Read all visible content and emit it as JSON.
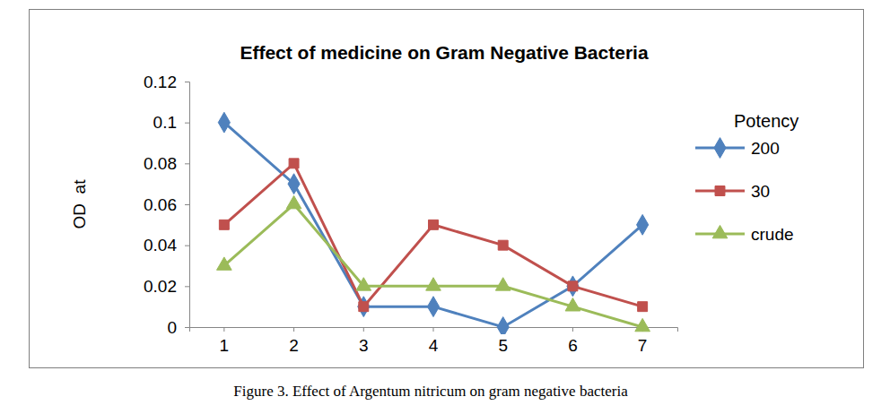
{
  "chart_data": {
    "type": "line",
    "title": "Effect of medicine on Gram Negative Bacteria",
    "y_label": "OD  at",
    "caption": "Figure 3. Effect of Argentum nitricum on gram negative bacteria",
    "legend_title": "Potency",
    "legend": "right",
    "grid": false,
    "categories": [
      "1",
      "2",
      "3",
      "4",
      "5",
      "6",
      "7"
    ],
    "series": [
      {
        "name": "200",
        "color": "#4f81bd",
        "marker": "diamond",
        "values": [
          0.1,
          0.07,
          0.01,
          0.01,
          0,
          0.02,
          0.05
        ]
      },
      {
        "name": "30",
        "color": "#c0504d",
        "marker": "square",
        "values": [
          0.05,
          0.08,
          0.01,
          0.05,
          0.04,
          0.02,
          0.01
        ]
      },
      {
        "name": "crude",
        "color": "#9bbb59",
        "marker": "triangle",
        "values": [
          0.03,
          0.06,
          0.02,
          0.02,
          0.02,
          0.01,
          0
        ]
      }
    ],
    "ylim": [
      0,
      0.12
    ],
    "yticks": [
      0,
      0.02,
      0.04,
      0.06,
      0.08,
      0.1,
      0.12
    ]
  }
}
